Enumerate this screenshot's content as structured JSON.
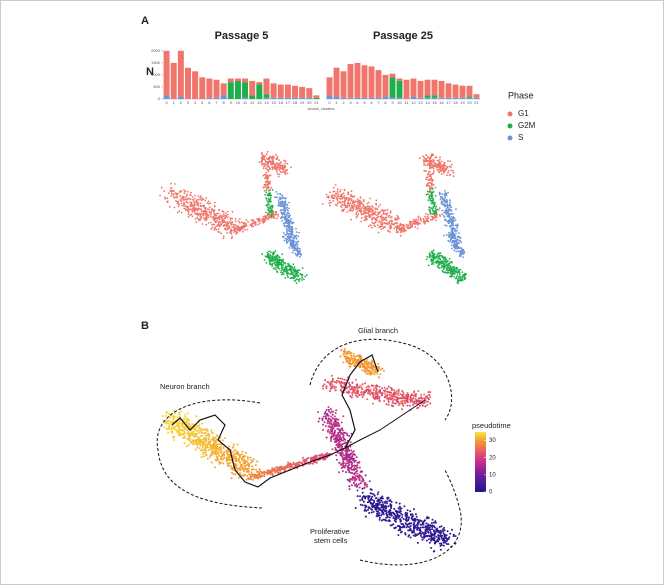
{
  "panel_labels": [
    "A",
    "B"
  ],
  "chart_data": [
    {
      "type": "bar",
      "stacked": true,
      "title": "Passage 5",
      "y_label": "N",
      "x_label": "seurat_clusters",
      "legend_title": "Phase",
      "categories": [
        "0",
        "1",
        "2",
        "3",
        "4",
        "5",
        "6",
        "7",
        "8",
        "9",
        "10",
        "11",
        "12",
        "13",
        "14",
        "15",
        "16",
        "17",
        "18",
        "19",
        "20",
        "21"
      ],
      "series": [
        {
          "name": "G1",
          "color": "#f0756a",
          "values": [
            1850,
            1500,
            1900,
            1300,
            1150,
            900,
            800,
            750,
            500,
            150,
            100,
            150,
            600,
            100,
            650,
            600,
            550,
            550,
            500,
            450,
            400,
            100
          ]
        },
        {
          "name": "G2M",
          "color": "#1fae4a",
          "values": [
            0,
            0,
            0,
            0,
            0,
            0,
            0,
            0,
            0,
            700,
            750,
            650,
            150,
            600,
            150,
            0,
            0,
            0,
            0,
            0,
            0,
            50
          ]
        },
        {
          "name": "S",
          "color": "#6b93d6",
          "values": [
            150,
            0,
            100,
            0,
            0,
            0,
            50,
            50,
            150,
            0,
            0,
            50,
            0,
            0,
            50,
            50,
            50,
            50,
            50,
            50,
            50,
            0
          ]
        }
      ],
      "ylim": [
        0,
        2200
      ],
      "yticks": [
        0,
        500,
        1000,
        1500,
        2000
      ]
    },
    {
      "type": "bar",
      "stacked": true,
      "title": "Passage 25",
      "categories": [
        "0",
        "1",
        "2",
        "3",
        "4",
        "5",
        "6",
        "7",
        "8",
        "9",
        "10",
        "11",
        "12",
        "13",
        "14",
        "15",
        "16",
        "17",
        "18",
        "19",
        "20",
        "21"
      ],
      "series": [
        {
          "color": "#f0756a",
          "values": [
            750,
            1200,
            1100,
            1400,
            1450,
            1350,
            1300,
            1150,
            900,
            150,
            100,
            800,
            750,
            700,
            650,
            650,
            700,
            600,
            550,
            500,
            450,
            150
          ]
        },
        {
          "color": "#1fae4a",
          "values": [
            0,
            0,
            0,
            0,
            0,
            0,
            0,
            0,
            0,
            850,
            700,
            0,
            0,
            0,
            100,
            100,
            0,
            0,
            0,
            0,
            50,
            0
          ]
        },
        {
          "color": "#6b93d6",
          "values": [
            150,
            100,
            50,
            50,
            50,
            50,
            50,
            50,
            100,
            50,
            50,
            0,
            100,
            50,
            50,
            50,
            50,
            50,
            50,
            50,
            50,
            50
          ]
        }
      ],
      "ylim": [
        0,
        2200
      ]
    }
  ],
  "trajectory_panel": {
    "colorbar_title": "pseudotime",
    "colorbar_lim": [
      0,
      35
    ],
    "colorbar_ticks": [
      0,
      10,
      20,
      30
    ],
    "annotations": [
      "Neuron branch",
      "Glial branch",
      "Proliferative",
      "stem cells"
    ]
  }
}
